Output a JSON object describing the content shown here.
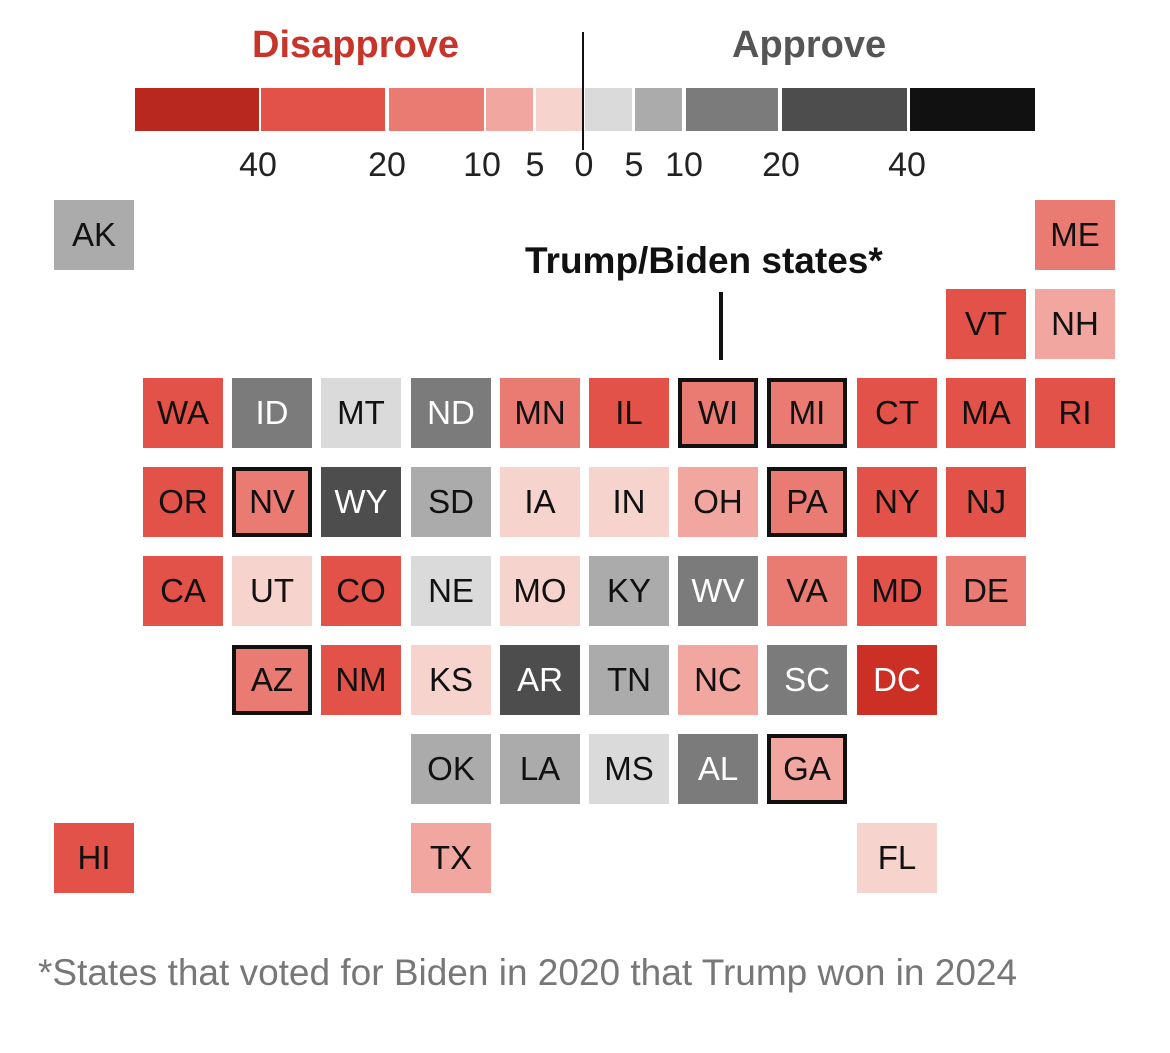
{
  "legend": {
    "disapprove_label": "Disapprove",
    "approve_label": "Approve",
    "ticks": [
      "40",
      "20",
      "10",
      "5",
      "0",
      "5",
      "10",
      "20",
      "40"
    ],
    "colors": [
      "#b8281f",
      "#e25248",
      "#e97b72",
      "#f1a69f",
      "#f6d3cd",
      "#dadada",
      "#ababab",
      "#7b7b7b",
      "#4d4d4d",
      "#111111"
    ]
  },
  "callout": {
    "label": "Trump/Biden states*"
  },
  "footnote": "*States that voted for Biden in 2020 that Trump won in 2024",
  "states": [
    {
      "code": "AK",
      "fill": "#ababab",
      "text": "#111",
      "highlight": false
    },
    {
      "code": "ME",
      "fill": "#e97b72",
      "text": "#111",
      "highlight": false
    },
    {
      "code": "VT",
      "fill": "#e25248",
      "text": "#111",
      "highlight": false
    },
    {
      "code": "NH",
      "fill": "#f1a69f",
      "text": "#111",
      "highlight": false
    },
    {
      "code": "WA",
      "fill": "#e25248",
      "text": "#111",
      "highlight": false
    },
    {
      "code": "ID",
      "fill": "#7b7b7b",
      "text": "#fff",
      "highlight": false
    },
    {
      "code": "MT",
      "fill": "#dadada",
      "text": "#111",
      "highlight": false
    },
    {
      "code": "ND",
      "fill": "#7b7b7b",
      "text": "#fff",
      "highlight": false
    },
    {
      "code": "MN",
      "fill": "#e97b72",
      "text": "#111",
      "highlight": false
    },
    {
      "code": "IL",
      "fill": "#e25248",
      "text": "#111",
      "highlight": false
    },
    {
      "code": "WI",
      "fill": "#e97b72",
      "text": "#111",
      "highlight": true
    },
    {
      "code": "MI",
      "fill": "#e97b72",
      "text": "#111",
      "highlight": true
    },
    {
      "code": "CT",
      "fill": "#e25248",
      "text": "#111",
      "highlight": false
    },
    {
      "code": "MA",
      "fill": "#e25248",
      "text": "#111",
      "highlight": false
    },
    {
      "code": "RI",
      "fill": "#e25248",
      "text": "#111",
      "highlight": false
    },
    {
      "code": "OR",
      "fill": "#e25248",
      "text": "#111",
      "highlight": false
    },
    {
      "code": "NV",
      "fill": "#e97b72",
      "text": "#111",
      "highlight": true
    },
    {
      "code": "WY",
      "fill": "#4d4d4d",
      "text": "#fff",
      "highlight": false
    },
    {
      "code": "SD",
      "fill": "#ababab",
      "text": "#111",
      "highlight": false
    },
    {
      "code": "IA",
      "fill": "#f6d3cd",
      "text": "#111",
      "highlight": false
    },
    {
      "code": "IN",
      "fill": "#f6d3cd",
      "text": "#111",
      "highlight": false
    },
    {
      "code": "OH",
      "fill": "#f1a69f",
      "text": "#111",
      "highlight": false
    },
    {
      "code": "PA",
      "fill": "#e97b72",
      "text": "#111",
      "highlight": true
    },
    {
      "code": "NY",
      "fill": "#e25248",
      "text": "#111",
      "highlight": false
    },
    {
      "code": "NJ",
      "fill": "#e25248",
      "text": "#111",
      "highlight": false
    },
    {
      "code": "CA",
      "fill": "#e25248",
      "text": "#111",
      "highlight": false
    },
    {
      "code": "UT",
      "fill": "#f6d3cd",
      "text": "#111",
      "highlight": false
    },
    {
      "code": "CO",
      "fill": "#e25248",
      "text": "#111",
      "highlight": false
    },
    {
      "code": "NE",
      "fill": "#dadada",
      "text": "#111",
      "highlight": false
    },
    {
      "code": "MO",
      "fill": "#f6d3cd",
      "text": "#111",
      "highlight": false
    },
    {
      "code": "KY",
      "fill": "#ababab",
      "text": "#111",
      "highlight": false
    },
    {
      "code": "WV",
      "fill": "#7b7b7b",
      "text": "#fff",
      "highlight": false
    },
    {
      "code": "VA",
      "fill": "#e97b72",
      "text": "#111",
      "highlight": false
    },
    {
      "code": "MD",
      "fill": "#e25248",
      "text": "#111",
      "highlight": false
    },
    {
      "code": "DE",
      "fill": "#e97b72",
      "text": "#111",
      "highlight": false
    },
    {
      "code": "AZ",
      "fill": "#e97b72",
      "text": "#111",
      "highlight": true
    },
    {
      "code": "NM",
      "fill": "#e25248",
      "text": "#111",
      "highlight": false
    },
    {
      "code": "KS",
      "fill": "#f6d3cd",
      "text": "#111",
      "highlight": false
    },
    {
      "code": "AR",
      "fill": "#4d4d4d",
      "text": "#fff",
      "highlight": false
    },
    {
      "code": "TN",
      "fill": "#ababab",
      "text": "#111",
      "highlight": false
    },
    {
      "code": "NC",
      "fill": "#f1a69f",
      "text": "#111",
      "highlight": false
    },
    {
      "code": "SC",
      "fill": "#7b7b7b",
      "text": "#fff",
      "highlight": false
    },
    {
      "code": "DC",
      "fill": "#cc3024",
      "text": "#fff",
      "highlight": false
    },
    {
      "code": "OK",
      "fill": "#ababab",
      "text": "#111",
      "highlight": false
    },
    {
      "code": "LA",
      "fill": "#ababab",
      "text": "#111",
      "highlight": false
    },
    {
      "code": "MS",
      "fill": "#dadada",
      "text": "#111",
      "highlight": false
    },
    {
      "code": "AL",
      "fill": "#7b7b7b",
      "text": "#fff",
      "highlight": false
    },
    {
      "code": "GA",
      "fill": "#f1a69f",
      "text": "#111",
      "highlight": true
    },
    {
      "code": "HI",
      "fill": "#e25248",
      "text": "#111",
      "highlight": false
    },
    {
      "code": "TX",
      "fill": "#f1a69f",
      "text": "#111",
      "highlight": false
    },
    {
      "code": "FL",
      "fill": "#f6d3cd",
      "text": "#111",
      "highlight": false
    }
  ]
}
